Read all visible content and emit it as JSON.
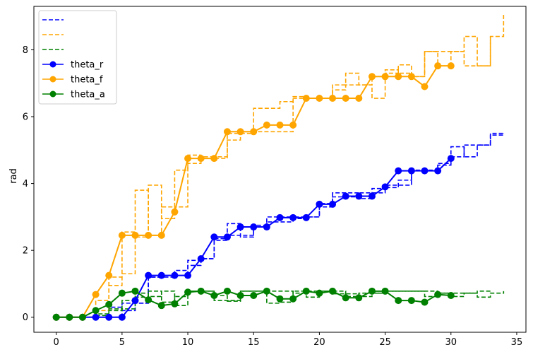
{
  "chart_data": {
    "type": "line",
    "ylabel": "rad",
    "xlabel": "",
    "xlim": [
      -1.7,
      35.7
    ],
    "ylim": [
      -0.45,
      9.3
    ],
    "xticks": [
      0,
      5,
      10,
      15,
      20,
      25,
      30,
      35
    ],
    "yticks": [
      0,
      2,
      4,
      6,
      8
    ],
    "grid": false,
    "legend_position": "top-left",
    "colors": {
      "theta_r": "#0000ff",
      "theta_f": "#ffa500",
      "theta_a": "#008000"
    },
    "legend": [
      {
        "label": "",
        "color": "#0000ff",
        "style": "dashed"
      },
      {
        "label": "",
        "color": "#ffa500",
        "style": "dashed"
      },
      {
        "label": "",
        "color": "#008000",
        "style": "dashed"
      },
      {
        "label": "theta_r",
        "color": "#0000ff",
        "style": "solid-marker"
      },
      {
        "label": "theta_f",
        "color": "#ffa500",
        "style": "solid-marker"
      },
      {
        "label": "theta_a",
        "color": "#008000",
        "style": "solid-marker"
      }
    ],
    "series": [
      {
        "name": "theta_r",
        "color": "#0000ff",
        "x": [
          0,
          1,
          2,
          3,
          4,
          5,
          6,
          7,
          8,
          9,
          10,
          11,
          12,
          13,
          14,
          15,
          16,
          17,
          18,
          19,
          20,
          21,
          22,
          23,
          24,
          25,
          26,
          27,
          28,
          29,
          30
        ],
        "values": [
          0,
          0,
          0,
          0,
          0,
          0,
          0.5,
          1.25,
          1.25,
          1.25,
          1.25,
          1.75,
          2.4,
          2.4,
          2.7,
          2.7,
          2.7,
          2.98,
          2.98,
          2.98,
          3.38,
          3.38,
          3.62,
          3.62,
          3.62,
          3.9,
          4.38,
          4.38,
          4.38,
          4.38,
          4.75
        ]
      },
      {
        "name": "theta_f",
        "color": "#ffa500",
        "x": [
          0,
          1,
          2,
          3,
          4,
          5,
          6,
          7,
          8,
          9,
          10,
          11,
          12,
          13,
          14,
          15,
          16,
          17,
          18,
          19,
          20,
          21,
          22,
          23,
          24,
          25,
          26,
          27,
          28,
          29,
          30
        ],
        "values": [
          0,
          0,
          0,
          0.68,
          1.25,
          2.45,
          2.45,
          2.45,
          2.45,
          3.15,
          4.75,
          4.75,
          4.75,
          5.55,
          5.55,
          5.55,
          5.75,
          5.75,
          5.75,
          6.55,
          6.55,
          6.55,
          6.55,
          6.55,
          7.2,
          7.2,
          7.2,
          7.2,
          6.9,
          7.52,
          7.52
        ]
      },
      {
        "name": "theta_a",
        "color": "#008000",
        "x": [
          0,
          1,
          2,
          3,
          4,
          5,
          6,
          7,
          8,
          9,
          10,
          11,
          12,
          13,
          14,
          15,
          16,
          17,
          18,
          19,
          20,
          21,
          22,
          23,
          24,
          25,
          26,
          27,
          28,
          29,
          30
        ],
        "values": [
          0,
          0,
          0,
          0.2,
          0.38,
          0.72,
          0.78,
          0.52,
          0.35,
          0.4,
          0.75,
          0.78,
          0.65,
          0.78,
          0.65,
          0.65,
          0.78,
          0.55,
          0.55,
          0.78,
          0.72,
          0.78,
          0.58,
          0.58,
          0.78,
          0.78,
          0.5,
          0.5,
          0.45,
          0.68,
          0.65
        ]
      }
    ],
    "dashed_series": [
      {
        "color": "#0000ff",
        "x": [
          3,
          4,
          5,
          6,
          7,
          8,
          9,
          10,
          11,
          12,
          13,
          14,
          15,
          16,
          17,
          18,
          19,
          20,
          21,
          22,
          23,
          24,
          25,
          26,
          27,
          28,
          29,
          30,
          31,
          32,
          33,
          34
        ],
        "values": [
          0,
          0.3,
          0.42,
          0.42,
          1.2,
          1.25,
          1.4,
          1.7,
          1.75,
          2.35,
          2.8,
          2.4,
          2.75,
          3.0,
          3.0,
          2.95,
          3.0,
          3.4,
          3.72,
          3.72,
          3.55,
          3.85,
          3.95,
          3.95,
          4.4,
          4.4,
          4.55,
          5.1,
          4.8,
          5.15,
          5.5,
          5.5
        ]
      },
      {
        "color": "#0000ff",
        "x": [
          4,
          5,
          6,
          7,
          8,
          9,
          10,
          11,
          12,
          13,
          14,
          15,
          16,
          17,
          18,
          19,
          20,
          21,
          22,
          23,
          24,
          25,
          26,
          27,
          28,
          29,
          30,
          31,
          32,
          33,
          34
        ],
        "values": [
          0,
          0.2,
          0.42,
          1.2,
          1.2,
          1.25,
          1.55,
          1.75,
          2.3,
          2.45,
          2.45,
          2.7,
          2.85,
          2.85,
          3.0,
          3.0,
          3.3,
          3.6,
          3.6,
          3.72,
          3.72,
          3.88,
          4.1,
          4.38,
          4.38,
          4.6,
          4.8,
          5.15,
          5.15,
          5.45,
          5.5
        ]
      },
      {
        "color": "#ffa500",
        "x": [
          2,
          3,
          4,
          5,
          6,
          7,
          8,
          9,
          10,
          11,
          12,
          13,
          14,
          15,
          16,
          17,
          18,
          19,
          20,
          21,
          22,
          23,
          24,
          25,
          26,
          27,
          28,
          29,
          30,
          31,
          32,
          33,
          34
        ],
        "values": [
          0,
          0.2,
          1.2,
          2.55,
          3.8,
          2.45,
          3.3,
          4.4,
          4.85,
          4.8,
          4.75,
          5.5,
          5.5,
          5.55,
          5.55,
          5.55,
          6.6,
          6.55,
          6.55,
          6.95,
          7.3,
          6.95,
          7.2,
          7.3,
          7.55,
          7.2,
          7.95,
          7.52,
          7.95,
          8.4,
          7.52,
          8.4,
          9.1
        ]
      },
      {
        "color": "#ffa500",
        "x": [
          2,
          3,
          4,
          5,
          6,
          7,
          8,
          9,
          10,
          11,
          12,
          13,
          14,
          15,
          16,
          17,
          18,
          19,
          20,
          21,
          22,
          23,
          24,
          25,
          26,
          27,
          28,
          29,
          30,
          31,
          32,
          33
        ],
        "values": [
          0,
          0.5,
          0.95,
          1.3,
          2.4,
          3.95,
          2.95,
          3.3,
          4.6,
          4.75,
          4.8,
          5.3,
          5.55,
          6.25,
          6.25,
          6.45,
          6.55,
          6.55,
          6.55,
          6.8,
          6.95,
          6.95,
          6.55,
          7.4,
          7.3,
          7.2,
          7.95,
          7.95,
          7.95,
          7.52,
          7.52,
          8.4
        ]
      },
      {
        "color": "#008000",
        "x": [
          2,
          3,
          4,
          5,
          6,
          7,
          8,
          9,
          10,
          11,
          12,
          13,
          14,
          15,
          16,
          17,
          18,
          19,
          20,
          21,
          22,
          23,
          24,
          25,
          26,
          27,
          28,
          29,
          30,
          31,
          32,
          33,
          34
        ],
        "values": [
          0,
          0.1,
          0.2,
          0.25,
          0.72,
          0.62,
          0.78,
          0.35,
          0.78,
          0.78,
          0.65,
          0.48,
          0.78,
          0.78,
          0.42,
          0.45,
          0.78,
          0.78,
          0.78,
          0.78,
          0.62,
          0.72,
          0.72,
          0.78,
          0.78,
          0.78,
          0.78,
          0.72,
          0.72,
          0.72,
          0.6,
          0.72,
          0.78
        ]
      },
      {
        "color": "#008000",
        "x": [
          3,
          4,
          5,
          6,
          7,
          8,
          9,
          10,
          11,
          12,
          13,
          14,
          15,
          16,
          17,
          18,
          19,
          20,
          21,
          22,
          23,
          24,
          25,
          26,
          27,
          28,
          29,
          30,
          31,
          32,
          33
        ],
        "values": [
          0.05,
          0.25,
          0.5,
          0.6,
          0.78,
          0.45,
          0.62,
          0.78,
          0.78,
          0.5,
          0.5,
          0.78,
          0.78,
          0.78,
          0.78,
          0.72,
          0.6,
          0.78,
          0.7,
          0.7,
          0.62,
          0.72,
          0.78,
          0.78,
          0.78,
          0.62,
          0.72,
          0.62,
          0.72,
          0.78,
          0.72
        ]
      }
    ]
  }
}
